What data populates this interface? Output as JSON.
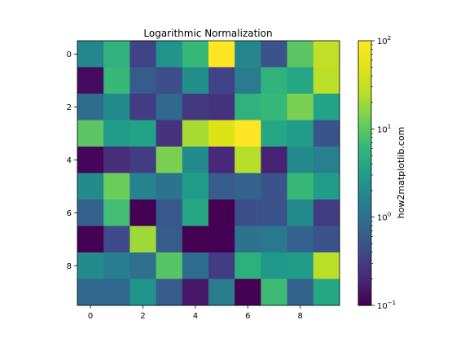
{
  "chart_data": {
    "type": "heatmap",
    "title": "Logarithmic Normalization",
    "colorbar_label": "how2matplotlib.com",
    "colormap": "viridis",
    "norm": "log",
    "vmin": 0.1,
    "vmax": 100,
    "x_ticks": [
      0,
      2,
      4,
      6,
      8
    ],
    "y_ticks": [
      0,
      2,
      4,
      6,
      8
    ],
    "colorbar_ticks": [
      {
        "value": 0.1,
        "base": "10",
        "exp": "−1"
      },
      {
        "value": 1,
        "base": "10",
        "exp": "0"
      },
      {
        "value": 10,
        "base": "10",
        "exp": "1"
      },
      {
        "value": 100,
        "base": "10",
        "exp": "2"
      }
    ],
    "grid": false,
    "values": [
      [
        1.8,
        5.5,
        0.35,
        2.5,
        6.5,
        100,
        1.8,
        0.5,
        10,
        30
      ],
      [
        0.12,
        6.5,
        0.6,
        0.45,
        2.2,
        0.35,
        1.3,
        5.5,
        4.0,
        28
      ],
      [
        0.9,
        2.0,
        0.3,
        0.8,
        0.28,
        0.25,
        5.5,
        6.5,
        14,
        3.5
      ],
      [
        10,
        3.0,
        3.5,
        0.25,
        22,
        50,
        100,
        4.0,
        3.0,
        0.5
      ],
      [
        0.11,
        0.22,
        0.3,
        14,
        2.0,
        0.2,
        25,
        0.18,
        2.0,
        1.5
      ],
      [
        2.0,
        12,
        1.6,
        1.1,
        3.0,
        0.6,
        0.7,
        0.5,
        6.5,
        3.0
      ],
      [
        0.7,
        7.5,
        0.1,
        0.55,
        4.0,
        0.1,
        0.45,
        0.5,
        2.0,
        0.3
      ],
      [
        0.1,
        0.4,
        20,
        0.6,
        0.1,
        0.1,
        1.1,
        1.2,
        0.7,
        0.5
      ],
      [
        2.0,
        1.4,
        1.0,
        9.5,
        0.9,
        0.3,
        5.0,
        2.8,
        3.0,
        28
      ],
      [
        0.8,
        0.8,
        2.5,
        0.6,
        0.15,
        1.3,
        0.1,
        7.0,
        0.7,
        4.0
      ]
    ]
  }
}
